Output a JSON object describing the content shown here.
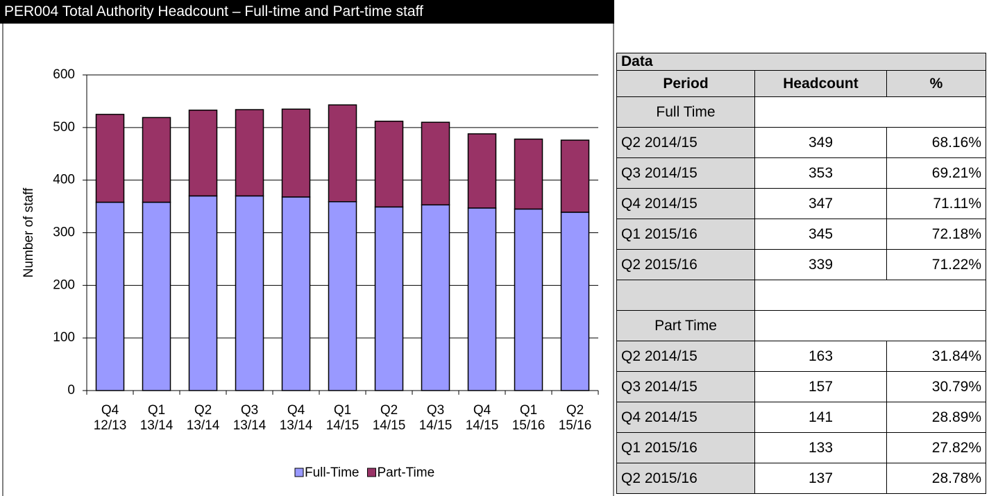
{
  "title": "PER004 Total Authority Headcount – Full-time and Part-time staff",
  "chart_data": {
    "type": "stacked-bar",
    "y_label": "Number of staff",
    "categories": [
      [
        "Q4",
        "12/13"
      ],
      [
        "Q1",
        "13/14"
      ],
      [
        "Q2",
        "13/14"
      ],
      [
        "Q3",
        "13/14"
      ],
      [
        "Q4",
        "13/14"
      ],
      [
        "Q1",
        "14/15"
      ],
      [
        "Q2",
        "14/15"
      ],
      [
        "Q3",
        "14/15"
      ],
      [
        "Q4",
        "14/15"
      ],
      [
        "Q1",
        "15/16"
      ],
      [
        "Q2",
        "15/16"
      ]
    ],
    "series": [
      {
        "name": "Full-Time",
        "color": "#9999ff",
        "values": [
          358,
          358,
          370,
          370,
          368,
          359,
          349,
          353,
          347,
          345,
          339
        ]
      },
      {
        "name": "Part-Time",
        "color": "#993366",
        "values": [
          167,
          161,
          163,
          164,
          167,
          184,
          163,
          157,
          141,
          133,
          137
        ]
      }
    ],
    "ylim": [
      0,
      600
    ],
    "yticks": [
      0,
      100,
      200,
      300,
      400,
      500,
      600
    ],
    "grid": true,
    "legend": "bottom"
  },
  "table": {
    "title": "Data",
    "columns": [
      "Period",
      "Headcount",
      "%"
    ],
    "rows": [
      [
        "Full Time"
      ],
      [
        "Q2 2014/15",
        349,
        "68.16%"
      ],
      [
        "Q3 2014/15",
        353,
        "69.21%"
      ],
      [
        "Q4 2014/15",
        347,
        "71.11%"
      ],
      [
        "Q1 2015/16",
        345,
        "72.18%"
      ],
      [
        "Q2 2015/16",
        339,
        "71.22%"
      ],
      [],
      [
        "Part Time"
      ],
      [
        "Q2 2014/15",
        163,
        "31.84%"
      ],
      [
        "Q3 2014/15",
        157,
        "30.79%"
      ],
      [
        "Q4 2014/15",
        141,
        "28.89%"
      ],
      [
        "Q1 2015/16",
        133,
        "27.82%"
      ],
      [
        "Q2 2015/16",
        137,
        "28.78%"
      ]
    ]
  }
}
